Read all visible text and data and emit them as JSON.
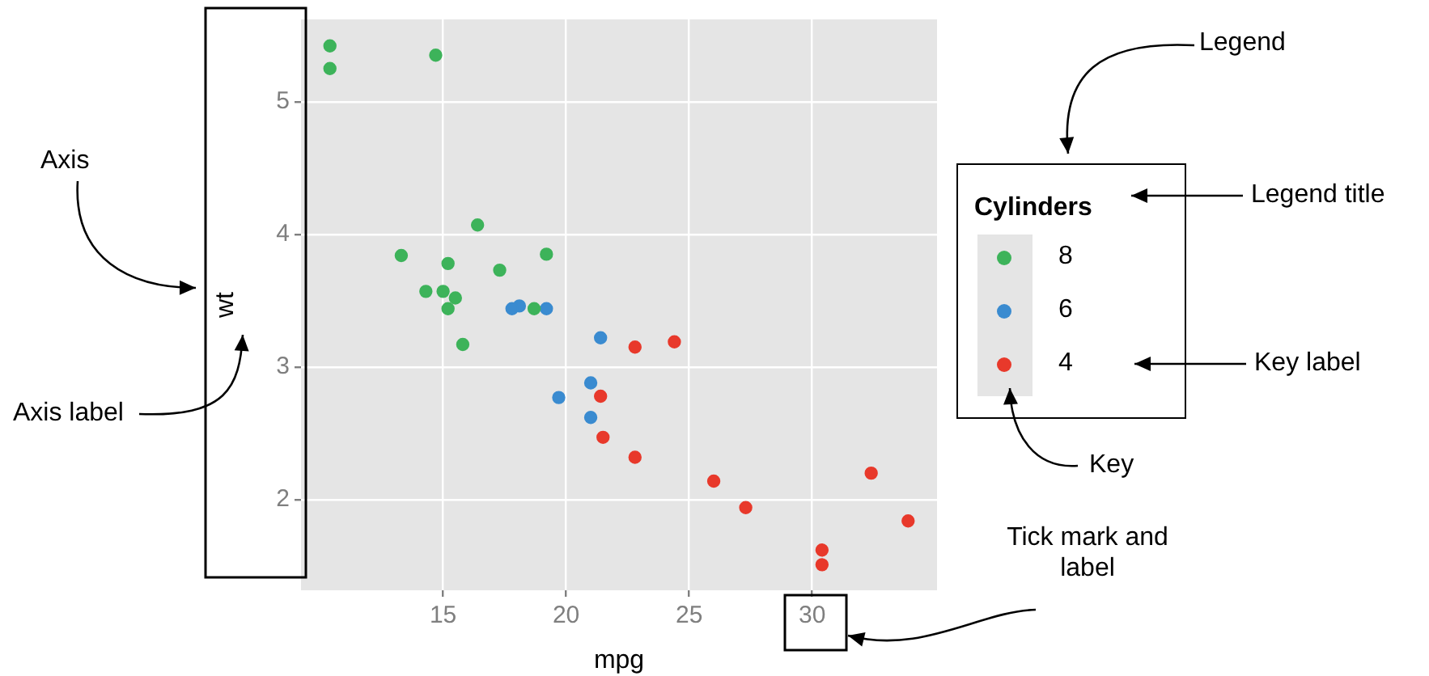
{
  "chart_data": {
    "type": "scatter",
    "xlabel": "mpg",
    "ylabel": "wt",
    "legend_title": "Cylinders",
    "legend": "right",
    "marker": "circle",
    "grid": true,
    "xlim": [
      9.225,
      35.075
    ],
    "ylim": [
      1.317,
      5.62
    ],
    "xticks": [
      15,
      20,
      25,
      30
    ],
    "yticks": [
      2,
      3,
      4,
      5
    ],
    "annotations": [
      "Axis",
      "Axis label",
      "Tick mark and label",
      "Legend",
      "Legend title",
      "Key label",
      "Key"
    ],
    "series": [
      {
        "name": "8",
        "color": "#3db35a",
        "x": [
          18.7,
          14.3,
          16.4,
          17.3,
          15.2,
          10.4,
          10.4,
          14.7,
          15.5,
          15.2,
          13.3,
          19.2,
          15.8,
          15.0
        ],
        "values": [
          3.44,
          3.57,
          4.07,
          3.73,
          3.78,
          5.25,
          5.42,
          5.35,
          3.52,
          3.44,
          3.84,
          3.85,
          3.17,
          3.57
        ]
      },
      {
        "name": "6",
        "color": "#3a8bd0",
        "x": [
          21.0,
          21.0,
          21.4,
          18.1,
          19.2,
          17.8,
          19.7
        ],
        "values": [
          2.62,
          2.88,
          3.22,
          3.46,
          3.44,
          3.44,
          2.77
        ]
      },
      {
        "name": "4",
        "color": "#e8392b",
        "x": [
          22.8,
          24.4,
          22.8,
          32.4,
          30.4,
          33.9,
          21.5,
          27.3,
          26.0,
          30.4,
          21.4
        ],
        "values": [
          2.32,
          3.19,
          3.15,
          2.2,
          1.62,
          1.84,
          2.47,
          1.94,
          2.14,
          1.51,
          2.78
        ]
      }
    ]
  }
}
